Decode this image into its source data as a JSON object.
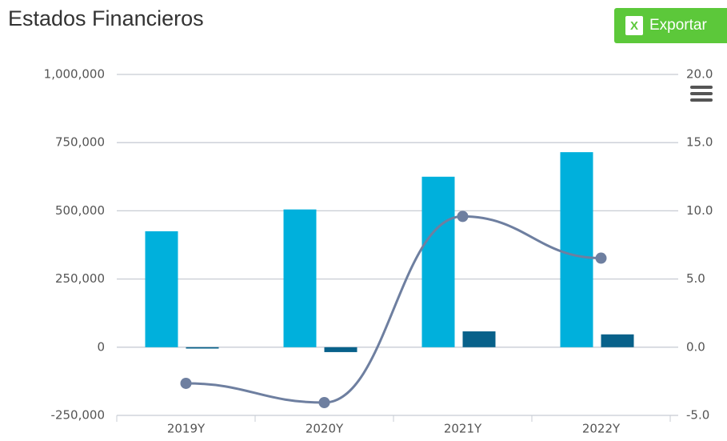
{
  "chart_data": {
    "type": "combo",
    "title": "Estados Financieros",
    "export_button": "Exportar",
    "categories": [
      "2019Y",
      "2020Y",
      "2021Y",
      "2022Y"
    ],
    "series": [
      {
        "type": "bar",
        "color": "#00b0dc",
        "values": [
          425000,
          505000,
          625000,
          715000
        ]
      },
      {
        "type": "bar",
        "color": "#08618a",
        "values": [
          -5000,
          -18000,
          58000,
          47000
        ]
      },
      {
        "type": "line",
        "axis": "y2",
        "color": "#6e7fa0",
        "values": [
          -2.65,
          -4.06,
          9.59,
          6.53
        ]
      }
    ],
    "ylim": [
      -250000,
      1000000
    ],
    "yticks": [
      {
        "value": -250000,
        "label": "-250,000"
      },
      0,
      {
        "value": 250000,
        "label": "250,000"
      },
      {
        "value": 500000,
        "label": "500,000"
      },
      {
        "value": 750000,
        "label": "750,000"
      },
      {
        "value": 1000000,
        "label": "1,000,000"
      }
    ],
    "y2lim": [
      -5,
      20
    ],
    "y2ticks": [
      {
        "value": -5,
        "label": "-5.0"
      },
      {
        "value": 0,
        "label": "0.0"
      },
      {
        "value": 5,
        "label": "5.0"
      },
      {
        "value": 10,
        "label": "10.0"
      },
      {
        "value": 15,
        "label": "15.0"
      },
      {
        "value": 20,
        "label": "20.0"
      }
    ],
    "grid": true
  }
}
